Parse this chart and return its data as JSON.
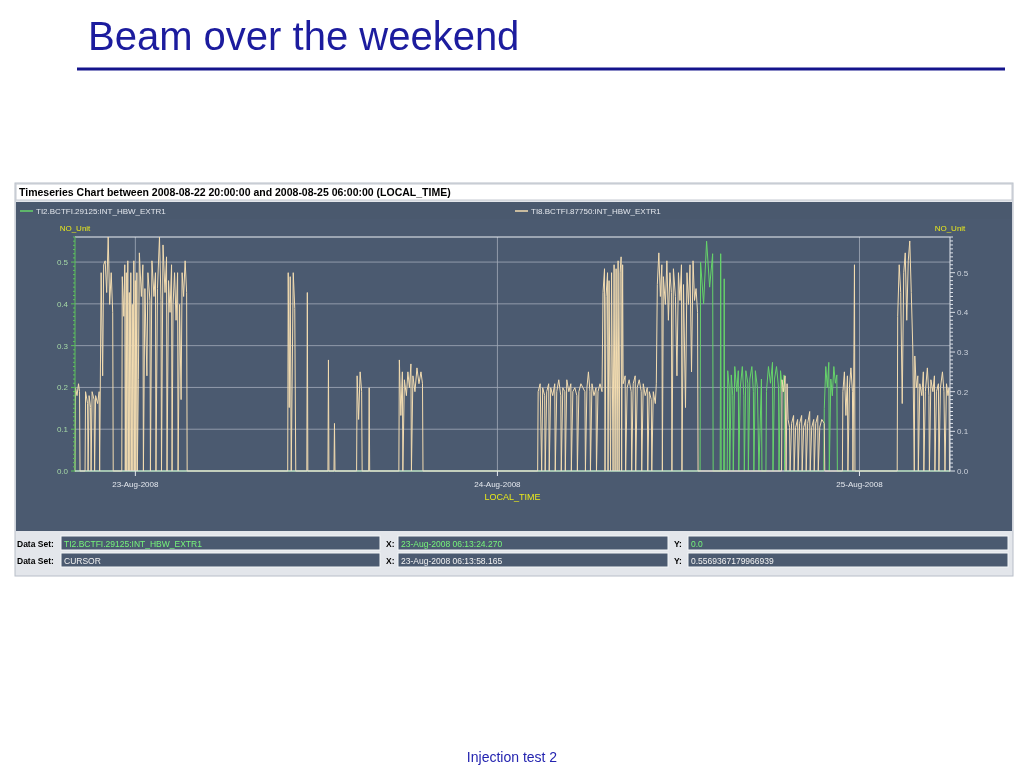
{
  "chart_data": {
    "type": "line",
    "title": "Beam over the weekend",
    "subtitle": "Timeseries Chart between 2008-08-22 20:00:00 and 2008-08-25 06:00:00 (LOCAL_TIME)",
    "xlabel": "LOCAL_TIME",
    "ylabel": "NO_Unit",
    "y2label": "NO_Unit",
    "annotations": [
      "Data Set:",
      "TI2.BCTFI.29125:INT_HBW_EXTR1",
      "X:",
      "23-Aug-2008 06:13:24.270",
      "Y:",
      "0.0",
      "Data Set:",
      "CURSOR",
      "X:",
      "23-Aug-2008 06:13:58.165",
      "Y:",
      "0.5569367179966939",
      "Injection test 2"
    ],
    "xlim": [
      "2008-08-22T20:00",
      "2008-08-25T06:00"
    ],
    "xticks": [
      {
        "value": "2008-08-23",
        "label": "23-Aug-2008"
      },
      {
        "value": "2008-08-24",
        "label": "24-Aug-2008"
      },
      {
        "value": "2008-08-25",
        "label": "25-Aug-2008"
      }
    ],
    "ylim": [
      0,
      0.56
    ],
    "yticks": [
      {
        "value": 0,
        "label": "0.0"
      },
      {
        "value": 0.01,
        "label": null
      },
      {
        "value": 0.02,
        "label": null
      },
      {
        "value": 0.03,
        "label": null
      },
      {
        "value": 0.04,
        "label": null
      },
      {
        "value": 0.05,
        "label": null
      },
      {
        "value": 0.06,
        "label": null
      },
      {
        "value": 0.07,
        "label": null
      },
      {
        "value": 0.08,
        "label": null
      },
      {
        "value": 0.09,
        "label": null
      },
      {
        "value": 0.1,
        "label": "0.1"
      },
      {
        "value": 0.11,
        "label": null
      },
      {
        "value": 0.12,
        "label": null
      },
      {
        "value": 0.13,
        "label": null
      },
      {
        "value": 0.14,
        "label": null
      },
      {
        "value": 0.15,
        "label": null
      },
      {
        "value": 0.16,
        "label": null
      },
      {
        "value": 0.17,
        "label": null
      },
      {
        "value": 0.18,
        "label": null
      },
      {
        "value": 0.19,
        "label": null
      },
      {
        "value": 0.2,
        "label": "0.2"
      },
      {
        "value": 0.21,
        "label": null
      },
      {
        "value": 0.22,
        "label": null
      },
      {
        "value": 0.23,
        "label": null
      },
      {
        "value": 0.24,
        "label": null
      },
      {
        "value": 0.25,
        "label": null
      },
      {
        "value": 0.26,
        "label": null
      },
      {
        "value": 0.27,
        "label": null
      },
      {
        "value": 0.28,
        "label": null
      },
      {
        "value": 0.29,
        "label": null
      },
      {
        "value": 0.3,
        "label": "0.3"
      },
      {
        "value": 0.31,
        "label": null
      },
      {
        "value": 0.32,
        "label": null
      },
      {
        "value": 0.33,
        "label": null
      },
      {
        "value": 0.34,
        "label": null
      },
      {
        "value": 0.35,
        "label": null
      },
      {
        "value": 0.36,
        "label": null
      },
      {
        "value": 0.37,
        "label": null
      },
      {
        "value": 0.38,
        "label": null
      },
      {
        "value": 0.39,
        "label": null
      },
      {
        "value": 0.4,
        "label": "0.4"
      },
      {
        "value": 0.41,
        "label": null
      },
      {
        "value": 0.42,
        "label": null
      },
      {
        "value": 0.43,
        "label": null
      },
      {
        "value": 0.44,
        "label": null
      },
      {
        "value": 0.45,
        "label": null
      },
      {
        "value": 0.46,
        "label": null
      },
      {
        "value": 0.47,
        "label": null
      },
      {
        "value": 0.48,
        "label": null
      },
      {
        "value": 0.49,
        "label": null
      },
      {
        "value": 0.5,
        "label": "0.5"
      },
      {
        "value": 0.51,
        "label": null
      },
      {
        "value": 0.52,
        "label": null
      },
      {
        "value": 0.53,
        "label": null
      },
      {
        "value": 0.54,
        "label": null
      },
      {
        "value": 0.55,
        "label": null
      },
      {
        "value": 0.56,
        "label": null
      }
    ],
    "y2lim": [
      0,
      0.59
    ],
    "y2ticks": [
      {
        "value": 0,
        "label": "0.0"
      },
      {
        "value": 0.01,
        "label": null
      },
      {
        "value": 0.02,
        "label": null
      },
      {
        "value": 0.03,
        "label": null
      },
      {
        "value": 0.04,
        "label": null
      },
      {
        "value": 0.05,
        "label": null
      },
      {
        "value": 0.06,
        "label": null
      },
      {
        "value": 0.07,
        "label": null
      },
      {
        "value": 0.08,
        "label": null
      },
      {
        "value": 0.09,
        "label": null
      },
      {
        "value": 0.1,
        "label": "0.1"
      },
      {
        "value": 0.11,
        "label": null
      },
      {
        "value": 0.12,
        "label": null
      },
      {
        "value": 0.13,
        "label": null
      },
      {
        "value": 0.14,
        "label": null
      },
      {
        "value": 0.15,
        "label": null
      },
      {
        "value": 0.16,
        "label": null
      },
      {
        "value": 0.17,
        "label": null
      },
      {
        "value": 0.18,
        "label": null
      },
      {
        "value": 0.19,
        "label": null
      },
      {
        "value": 0.2,
        "label": "0.2"
      },
      {
        "value": 0.21,
        "label": null
      },
      {
        "value": 0.22,
        "label": null
      },
      {
        "value": 0.23,
        "label": null
      },
      {
        "value": 0.24,
        "label": null
      },
      {
        "value": 0.25,
        "label": null
      },
      {
        "value": 0.26,
        "label": null
      },
      {
        "value": 0.27,
        "label": null
      },
      {
        "value": 0.28,
        "label": null
      },
      {
        "value": 0.29,
        "label": null
      },
      {
        "value": 0.3,
        "label": "0.3"
      },
      {
        "value": 0.31,
        "label": null
      },
      {
        "value": 0.32,
        "label": null
      },
      {
        "value": 0.33,
        "label": null
      },
      {
        "value": 0.34,
        "label": null
      },
      {
        "value": 0.35,
        "label": null
      },
      {
        "value": 0.36,
        "label": null
      },
      {
        "value": 0.37,
        "label": null
      },
      {
        "value": 0.38,
        "label": null
      },
      {
        "value": 0.39,
        "label": null
      },
      {
        "value": 0.4,
        "label": "0.4"
      },
      {
        "value": 0.41,
        "label": null
      },
      {
        "value": 0.42,
        "label": null
      },
      {
        "value": 0.43,
        "label": null
      },
      {
        "value": 0.44,
        "label": null
      },
      {
        "value": 0.45,
        "label": null
      },
      {
        "value": 0.46,
        "label": null
      },
      {
        "value": 0.47,
        "label": null
      },
      {
        "value": 0.48,
        "label": null
      },
      {
        "value": 0.49,
        "label": null
      },
      {
        "value": 0.5,
        "label": "0.5"
      },
      {
        "value": 0.51,
        "label": null
      },
      {
        "value": 0.52,
        "label": null
      },
      {
        "value": 0.53,
        "label": null
      },
      {
        "value": 0.54,
        "label": null
      },
      {
        "value": 0.55,
        "label": null
      },
      {
        "value": 0.56,
        "label": null
      },
      {
        "value": 0.57,
        "label": null
      },
      {
        "value": 0.58,
        "label": null
      },
      {
        "value": 0.59,
        "label": null
      }
    ],
    "grid": true,
    "legend": "top",
    "line_style": "solid",
    "series": [
      {
        "name": "TI2.BCTFI.29125:INT_HBW_EXTR1",
        "color": "#66d46a",
        "x": [
          "2008-08-22T20:00",
          "2008-08-24T13:26",
          "2008-08-24T13:28",
          "2008-08-24T13:40",
          "2008-08-24T13:52",
          "2008-08-24T14:04",
          "2008-08-24T14:16",
          "2008-08-24T14:18",
          "2008-08-24T14:46",
          "2008-08-24T14:48",
          "2008-08-24T14:50",
          "2008-08-24T15:00",
          "2008-08-24T15:02",
          "2008-08-24T15:04",
          "2008-08-24T15:14",
          "2008-08-24T15:16",
          "2008-08-24T15:22",
          "2008-08-24T15:24",
          "2008-08-24T15:30",
          "2008-08-24T15:36",
          "2008-08-24T15:38",
          "2008-08-24T15:44",
          "2008-08-24T15:52",
          "2008-08-24T15:58",
          "2008-08-24T16:00",
          "2008-08-24T16:06",
          "2008-08-24T16:14",
          "2008-08-24T16:20",
          "2008-08-24T16:22",
          "2008-08-24T16:28",
          "2008-08-24T16:36",
          "2008-08-24T16:38",
          "2008-08-24T16:44",
          "2008-08-24T16:52",
          "2008-08-24T16:58",
          "2008-08-24T17:00",
          "2008-08-24T17:06",
          "2008-08-24T17:14",
          "2008-08-24T17:20",
          "2008-08-24T17:30",
          "2008-08-24T17:32",
          "2008-08-24T17:48",
          "2008-08-24T17:50",
          "2008-08-24T17:58",
          "2008-08-24T18:06",
          "2008-08-24T18:14",
          "2008-08-24T18:16",
          "2008-08-24T18:22",
          "2008-08-24T18:30",
          "2008-08-24T18:38",
          "2008-08-24T18:40",
          "2008-08-24T18:46",
          "2008-08-24T18:54",
          "2008-08-24T19:00",
          "2008-08-24T19:02",
          "2008-08-24T21:38",
          "2008-08-24T21:40",
          "2008-08-24T21:46",
          "2008-08-24T21:52",
          "2008-08-24T21:58",
          "2008-08-24T22:00",
          "2008-08-24T22:06",
          "2008-08-24T22:12",
          "2008-08-24T22:18",
          "2008-08-24T22:24",
          "2008-08-24T22:30",
          "2008-08-24T22:32",
          "2008-08-25T06:00"
        ],
        "values": [
          0,
          0,
          0.5,
          0.4,
          0.55,
          0.44,
          0.52,
          0,
          0,
          0.52,
          0,
          0,
          0.46,
          0,
          0,
          0.24,
          0.2,
          0,
          0.23,
          0.18,
          0,
          0.25,
          0.19,
          0.24,
          0,
          0.2,
          0.25,
          0.18,
          0,
          0.24,
          0.21,
          0,
          0.22,
          0.25,
          0.19,
          0,
          0.24,
          0.2,
          0,
          0.22,
          0,
          0,
          0.19,
          0.25,
          0.21,
          0.26,
          0,
          0.22,
          0.25,
          0.2,
          0,
          0.24,
          0.19,
          0.23,
          0,
          0,
          0.15,
          0.25,
          0.2,
          0.26,
          0,
          0.22,
          0.18,
          0.25,
          0.21,
          0.23,
          0,
          0
        ]
      },
      {
        "name": "TI8.BCTFI.87750:INT_HBW_EXTR1",
        "color": "#f3dcb0",
        "axis": "y2",
        "x": [
          "2008-08-22T20:00",
          "2008-08-22T20:02",
          "2008-08-22T20:08",
          "2008-08-22T20:14",
          "2008-08-22T20:18",
          "2008-08-22T20:20",
          "2008-08-22T20:40",
          "2008-08-22T20:42",
          "2008-08-22T20:50",
          "2008-08-22T20:52",
          "2008-08-22T20:56",
          "2008-08-22T21:02",
          "2008-08-22T21:04",
          "2008-08-22T21:08",
          "2008-08-22T21:16",
          "2008-08-22T21:18",
          "2008-08-22T21:22",
          "2008-08-22T21:30",
          "2008-08-22T21:36",
          "2008-08-22T21:38",
          "2008-08-22T21:44",
          "2008-08-22T21:50",
          "2008-08-22T21:54",
          "2008-08-22T22:00",
          "2008-08-22T22:06",
          "2008-08-22T22:12",
          "2008-08-22T22:18",
          "2008-08-22T22:24",
          "2008-08-22T22:30",
          "2008-08-22T22:32",
          "2008-08-22T23:06",
          "2008-08-22T23:08",
          "2008-08-22T23:14",
          "2008-08-22T23:18",
          "2008-08-22T23:20",
          "2008-08-22T23:24",
          "2008-08-22T23:26",
          "2008-08-22T23:30",
          "2008-08-22T23:32",
          "2008-08-22T23:36",
          "2008-08-22T23:38",
          "2008-08-22T23:42",
          "2008-08-22T23:44",
          "2008-08-22T23:48",
          "2008-08-22T23:50",
          "2008-08-22T23:54",
          "2008-08-22T23:56",
          "2008-08-23T00:00",
          "2008-08-23T00:02",
          "2008-08-23T00:06",
          "2008-08-23T00:08",
          "2008-08-23T00:12",
          "2008-08-23T00:16",
          "2008-08-23T00:24",
          "2008-08-23T00:30",
          "2008-08-23T00:32",
          "2008-08-23T00:38",
          "2008-08-23T00:46",
          "2008-08-23T00:50",
          "2008-08-23T00:58",
          "2008-08-23T01:00",
          "2008-08-23T01:06",
          "2008-08-23T01:14",
          "2008-08-23T01:20",
          "2008-08-23T01:22",
          "2008-08-23T01:28",
          "2008-08-23T01:36",
          "2008-08-23T01:42",
          "2008-08-23T01:44",
          "2008-08-23T01:50",
          "2008-08-23T01:58",
          "2008-08-23T02:04",
          "2008-08-23T02:06",
          "2008-08-23T02:12",
          "2008-08-23T02:18",
          "2008-08-23T02:24",
          "2008-08-23T02:26",
          "2008-08-23T02:30",
          "2008-08-23T02:36",
          "2008-08-23T02:42",
          "2008-08-23T02:48",
          "2008-08-23T02:50",
          "2008-08-23T02:56",
          "2008-08-23T03:02",
          "2008-08-23T03:06",
          "2008-08-23T03:12",
          "2008-08-23T03:18",
          "2008-08-23T03:24",
          "2008-08-23T03:26",
          "2008-08-23T10:06",
          "2008-08-23T10:08",
          "2008-08-23T10:12",
          "2008-08-23T10:16",
          "2008-08-23T10:20",
          "2008-08-23T10:28",
          "2008-08-23T10:34",
          "2008-08-23T10:38",
          "2008-08-23T11:22",
          "2008-08-23T11:24",
          "2008-08-23T11:26",
          "2008-08-23T12:46",
          "2008-08-23T12:48",
          "2008-08-23T12:50",
          "2008-08-23T13:10",
          "2008-08-23T13:12",
          "2008-08-23T13:14",
          "2008-08-23T14:40",
          "2008-08-23T14:42",
          "2008-08-23T14:48",
          "2008-08-23T14:54",
          "2008-08-23T15:00",
          "2008-08-23T15:02",
          "2008-08-23T15:28",
          "2008-08-23T15:30",
          "2008-08-23T15:32",
          "2008-08-23T17:28",
          "2008-08-23T17:30",
          "2008-08-23T17:36",
          "2008-08-23T17:42",
          "2008-08-23T17:44",
          "2008-08-23T17:50",
          "2008-08-23T17:58",
          "2008-08-23T18:04",
          "2008-08-23T18:10",
          "2008-08-23T18:16",
          "2008-08-23T18:18",
          "2008-08-23T18:24",
          "2008-08-23T18:32",
          "2008-08-23T18:40",
          "2008-08-23T18:48",
          "2008-08-23T18:56",
          "2008-08-23T19:02",
          "2008-08-23T19:04",
          "2008-08-24T02:40",
          "2008-08-24T02:42",
          "2008-08-24T02:50",
          "2008-08-24T02:56",
          "2008-08-24T03:00",
          "2008-08-24T03:08",
          "2008-08-24T03:10",
          "2008-08-24T03:16",
          "2008-08-24T03:24",
          "2008-08-24T03:26",
          "2008-08-24T03:32",
          "2008-08-24T03:40",
          "2008-08-24T03:48",
          "2008-08-24T03:50",
          "2008-08-24T03:56",
          "2008-08-24T04:04",
          "2008-08-24T04:12",
          "2008-08-24T04:14",
          "2008-08-24T04:20",
          "2008-08-24T04:28",
          "2008-08-24T04:30",
          "2008-08-24T04:36",
          "2008-08-24T04:44",
          "2008-08-24T04:52",
          "2008-08-24T04:54",
          "2008-08-24T05:00",
          "2008-08-24T05:08",
          "2008-08-24T05:16",
          "2008-08-24T05:18",
          "2008-08-24T05:24",
          "2008-08-24T05:32",
          "2008-08-24T05:40",
          "2008-08-24T05:48",
          "2008-08-24T05:50",
          "2008-08-24T05:56",
          "2008-08-24T06:02",
          "2008-08-24T06:08",
          "2008-08-24T06:10",
          "2008-08-24T06:16",
          "2008-08-24T06:24",
          "2008-08-24T06:32",
          "2008-08-24T06:34",
          "2008-08-24T06:40",
          "2008-08-24T06:48",
          "2008-08-24T06:56",
          "2008-08-24T07:00",
          "2008-08-24T07:06",
          "2008-08-24T07:08",
          "2008-08-24T07:12",
          "2008-08-24T07:18",
          "2008-08-24T07:20",
          "2008-08-24T07:24",
          "2008-08-24T07:30",
          "2008-08-24T07:34",
          "2008-08-24T07:40",
          "2008-08-24T07:44",
          "2008-08-24T07:48",
          "2008-08-24T07:52",
          "2008-08-24T07:56",
          "2008-08-24T08:00",
          "2008-08-24T08:04",
          "2008-08-24T08:08",
          "2008-08-24T08:12",
          "2008-08-24T08:14",
          "2008-08-24T08:18",
          "2008-08-24T08:20",
          "2008-08-24T08:28",
          "2008-08-24T08:30",
          "2008-08-24T08:36",
          "2008-08-24T08:44",
          "2008-08-24T08:52",
          "2008-08-24T08:54",
          "2008-08-24T09:00",
          "2008-08-24T09:08",
          "2008-08-24T09:10",
          "2008-08-24T09:16",
          "2008-08-24T09:24",
          "2008-08-24T09:32",
          "2008-08-24T09:34",
          "2008-08-24T09:40",
          "2008-08-24T09:48",
          "2008-08-24T09:56",
          "2008-08-24T09:58",
          "2008-08-24T10:04",
          "2008-08-24T10:12",
          "2008-08-24T10:14",
          "2008-08-24T10:20",
          "2008-08-24T10:28",
          "2008-08-24T10:32",
          "2008-08-24T10:36",
          "2008-08-24T10:42",
          "2008-08-24T10:48",
          "2008-08-24T10:54",
          "2008-08-24T10:56",
          "2008-08-24T11:00",
          "2008-08-24T11:08",
          "2008-08-24T11:14",
          "2008-08-24T11:20",
          "2008-08-24T11:26",
          "2008-08-24T11:32",
          "2008-08-24T11:34",
          "2008-08-24T11:40",
          "2008-08-24T11:48",
          "2008-08-24T11:54",
          "2008-08-24T12:00",
          "2008-08-24T12:06",
          "2008-08-24T12:12",
          "2008-08-24T12:14",
          "2008-08-24T12:20",
          "2008-08-24T12:28",
          "2008-08-24T12:34",
          "2008-08-24T12:40",
          "2008-08-24T12:46",
          "2008-08-24T12:52",
          "2008-08-24T12:58",
          "2008-08-24T13:04",
          "2008-08-24T13:10",
          "2008-08-24T13:16",
          "2008-08-24T13:18",
          "2008-08-24T18:50",
          "2008-08-24T18:52",
          "2008-08-24T18:58",
          "2008-08-24T19:04",
          "2008-08-24T19:08",
          "2008-08-24T19:12",
          "2008-08-24T19:16",
          "2008-08-24T19:22",
          "2008-08-24T19:24",
          "2008-08-24T19:30",
          "2008-08-24T19:38",
          "2008-08-24T19:40",
          "2008-08-24T19:46",
          "2008-08-24T19:54",
          "2008-08-24T19:56",
          "2008-08-24T20:02",
          "2008-08-24T20:10",
          "2008-08-24T20:12",
          "2008-08-24T20:18",
          "2008-08-24T20:26",
          "2008-08-24T20:28",
          "2008-08-24T20:34",
          "2008-08-24T20:42",
          "2008-08-24T20:44",
          "2008-08-24T20:50",
          "2008-08-24T20:58",
          "2008-08-24T21:00",
          "2008-08-24T21:06",
          "2008-08-24T21:14",
          "2008-08-24T21:16",
          "2008-08-24T21:22",
          "2008-08-24T21:30",
          "2008-08-24T21:40",
          "2008-08-24T21:42",
          "2008-08-24T22:52",
          "2008-08-24T22:54",
          "2008-08-24T23:00",
          "2008-08-24T23:06",
          "2008-08-24T23:12",
          "2008-08-24T23:14",
          "2008-08-24T23:20",
          "2008-08-24T23:26",
          "2008-08-24T23:32",
          "2008-08-24T23:34",
          "2008-08-24T23:38",
          "2008-08-24T23:40",
          "2008-08-24T23:42",
          "2008-08-25T02:30",
          "2008-08-25T02:32",
          "2008-08-25T02:38",
          "2008-08-25T02:44",
          "2008-08-25T02:50",
          "2008-08-25T02:56",
          "2008-08-25T03:02",
          "2008-08-25T03:08",
          "2008-08-25T03:14",
          "2008-08-25T03:20",
          "2008-08-25T03:26",
          "2008-08-25T03:32",
          "2008-08-25T03:38",
          "2008-08-25T03:40",
          "2008-08-25T03:46",
          "2008-08-25T03:52",
          "2008-08-25T03:54",
          "2008-08-25T04:00",
          "2008-08-25T04:08",
          "2008-08-25T04:14",
          "2008-08-25T04:16",
          "2008-08-25T04:22",
          "2008-08-25T04:30",
          "2008-08-25T04:36",
          "2008-08-25T04:38",
          "2008-08-25T04:44",
          "2008-08-25T04:52",
          "2008-08-25T04:58",
          "2008-08-25T05:00",
          "2008-08-25T05:06",
          "2008-08-25T05:14",
          "2008-08-25T05:16",
          "2008-08-25T05:22",
          "2008-08-25T05:30",
          "2008-08-25T05:36",
          "2008-08-25T05:40",
          "2008-08-25T05:46",
          "2008-08-25T05:52",
          "2008-08-25T05:56",
          "2008-08-25T05:58"
        ],
        "values": [
          0,
          0.21,
          0.19,
          0.22,
          0.2,
          0,
          0,
          0.2,
          0.17,
          0,
          0.19,
          0.16,
          0,
          0.2,
          0.18,
          0,
          0.19,
          0.17,
          0.2,
          0,
          0.5,
          0.24,
          0.52,
          0.53,
          0.45,
          0.59,
          0.42,
          0.5,
          0.4,
          0,
          0,
          0.49,
          0.39,
          0.52,
          0,
          0.5,
          0,
          0.53,
          0,
          0.45,
          0,
          0.5,
          0,
          0.42,
          0,
          0.53,
          0,
          0.48,
          0,
          0.5,
          0,
          0.23,
          0.55,
          0.44,
          0.52,
          0,
          0.46,
          0.24,
          0.5,
          0.43,
          0,
          0.53,
          0.44,
          0.5,
          0,
          0.46,
          0.59,
          0.43,
          0,
          0.57,
          0.45,
          0.54,
          0,
          0.48,
          0.4,
          0.52,
          0,
          0.42,
          0.5,
          0.38,
          0.5,
          0,
          0.42,
          0.18,
          0.5,
          0.44,
          0.53,
          0.45,
          0,
          0,
          0.5,
          0.16,
          0.49,
          0,
          0.5,
          0.41,
          0,
          0,
          0.45,
          0,
          0,
          0.28,
          0,
          0,
          0.12,
          0,
          0,
          0.24,
          0.13,
          0.25,
          0.2,
          0,
          0,
          0.21,
          0,
          0,
          0.28,
          0.14,
          0.25,
          0,
          0.23,
          0.19,
          0.25,
          0.21,
          0.27,
          0,
          0.24,
          0.2,
          0.26,
          0.22,
          0.25,
          0.22,
          0,
          0,
          0.2,
          0.22,
          0,
          0.21,
          0.19,
          0,
          0.2,
          0.22,
          0,
          0.21,
          0.19,
          0.22,
          0,
          0.2,
          0.23,
          0.19,
          0,
          0.21,
          0.2,
          0,
          0.23,
          0.2,
          0.22,
          0,
          0.2,
          0.21,
          0.19,
          0,
          0.2,
          0.22,
          0.21,
          0.2,
          0,
          0.21,
          0.25,
          0.2,
          0,
          0.22,
          0.19,
          0.21,
          0,
          0.2,
          0.22,
          0.2,
          0.45,
          0.51,
          0,
          0.44,
          0.5,
          0,
          0.48,
          0,
          0.5,
          0,
          0.52,
          0,
          0.51,
          0,
          0.53,
          0,
          0.5,
          0.54,
          0,
          0.52,
          0.22,
          0.24,
          0,
          0.21,
          0.23,
          0.2,
          0,
          0.22,
          0.24,
          0,
          0.21,
          0.23,
          0.2,
          0,
          0.22,
          0.19,
          0.21,
          0,
          0.2,
          0.18,
          0,
          0.2,
          0.17,
          0.22,
          0.47,
          0.55,
          0.44,
          0.52,
          0,
          0.49,
          0.42,
          0.53,
          0.38,
          0.5,
          0.45,
          0,
          0.51,
          0.44,
          0.24,
          0.5,
          0.43,
          0.52,
          0,
          0.47,
          0.16,
          0.5,
          0.42,
          0.52,
          0.25,
          0.53,
          0.43,
          0.46,
          0.4,
          0,
          0,
          0.23,
          0.2,
          0.24,
          0,
          0.22,
          0.13,
          0.11,
          0,
          0.12,
          0.14,
          0,
          0.11,
          0.13,
          0,
          0.12,
          0.14,
          0,
          0.11,
          0.13,
          0,
          0.12,
          0.15,
          0,
          0.11,
          0.13,
          0,
          0.12,
          0.14,
          0,
          0.11,
          0.13,
          0.12,
          0,
          0,
          0.2,
          0.25,
          0.14,
          0.24,
          0,
          0.21,
          0.26,
          0.2,
          0,
          0.3,
          0.52,
          0,
          0,
          0.39,
          0.52,
          0.45,
          0.17,
          0.5,
          0.55,
          0.38,
          0.53,
          0.58,
          0.45,
          0.31,
          0,
          0.29,
          0.21,
          0.24,
          0,
          0.22,
          0.19,
          0.25,
          0,
          0.2,
          0.26,
          0.19,
          0,
          0.23,
          0.2,
          0.24,
          0,
          0.2,
          0.22,
          0,
          0.21,
          0.25,
          0.2,
          0,
          0.22,
          0.19,
          0.21,
          0
        ]
      }
    ]
  }
}
